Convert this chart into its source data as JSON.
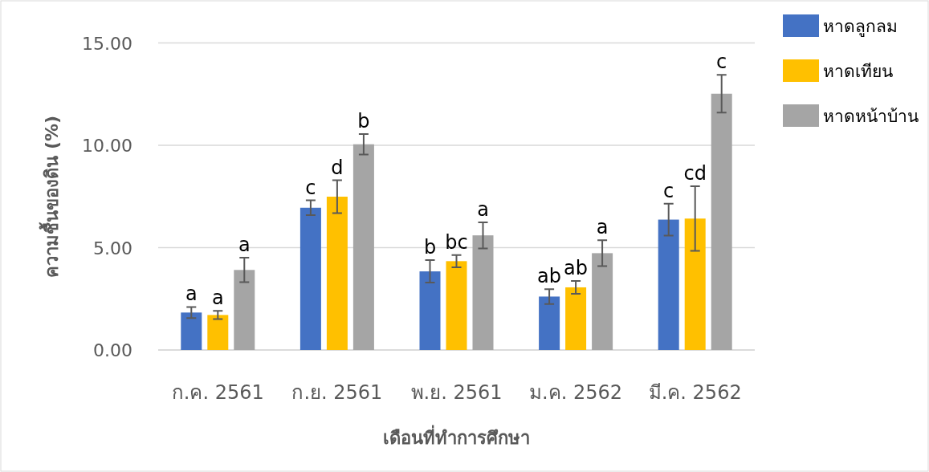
{
  "chart_data": {
    "type": "bar",
    "xlabel": "เดือนที่ทำการศึกษา",
    "ylabel": "ความชื้นของดิน (%)",
    "categories": [
      "ก.ค. 2561",
      "ก.ย. 2561",
      "พ.ย. 2561",
      "ม.ค. 2562",
      "มี.ค. 2562"
    ],
    "series": [
      {
        "name": "หาดลูกลม",
        "color": "#4472c4",
        "values": [
          1.83,
          6.95,
          3.84,
          2.61,
          6.37
        ],
        "errors": [
          0.27,
          0.36,
          0.55,
          0.36,
          0.78
        ]
      },
      {
        "name": "หาดเทียน",
        "color": "#ffc000",
        "values": [
          1.71,
          7.49,
          4.34,
          3.06,
          6.42
        ],
        "errors": [
          0.2,
          0.8,
          0.3,
          0.31,
          1.58
        ]
      },
      {
        "name": "หาดหน้าบ้าน",
        "color": "#a5a5a5",
        "values": [
          3.91,
          10.05,
          5.6,
          4.73,
          12.52
        ],
        "errors": [
          0.6,
          0.5,
          0.64,
          0.63,
          0.92
        ]
      }
    ],
    "ylim": [
      0,
      15
    ],
    "yticks": [
      {
        "value": 0,
        "label": "0.00"
      },
      {
        "value": 5,
        "label": "5.00"
      },
      {
        "value": 10,
        "label": "10.00"
      },
      {
        "value": 15,
        "label": "15.00"
      }
    ],
    "grid": "y",
    "legend": "top right",
    "annotations": [
      "a",
      "a",
      "a",
      "c",
      "d",
      "b",
      "b",
      "bc",
      "a",
      "ab",
      "ab",
      "a",
      "c",
      "cd",
      "c"
    ]
  }
}
